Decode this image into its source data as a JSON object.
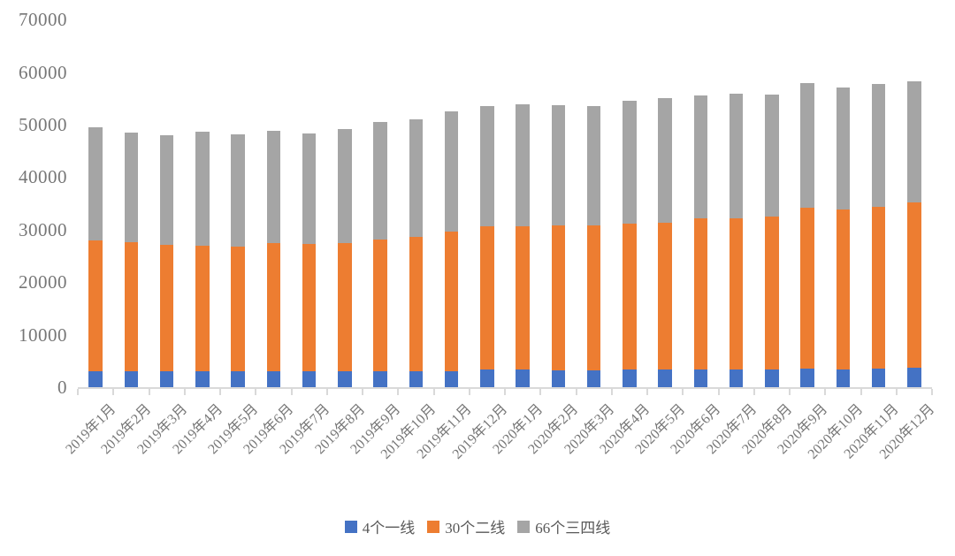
{
  "chart_data": {
    "type": "bar",
    "stacked": true,
    "title": "",
    "xlabel": "",
    "ylabel": "",
    "grid": false,
    "legend_position": "bottom",
    "ylim": [
      0,
      70000
    ],
    "ytick_interval": 10000,
    "yticks": [
      0,
      10000,
      20000,
      30000,
      40000,
      50000,
      60000,
      70000
    ],
    "categories": [
      "2019年1月",
      "2019年2月",
      "2019年3月",
      "2019年4月",
      "2019年5月",
      "2019年6月",
      "2019年7月",
      "2019年8月",
      "2019年9月",
      "2019年10月",
      "2019年11月",
      "2019年12月",
      "2020年1月",
      "2020年2月",
      "2020年3月",
      "2020年4月",
      "2020年5月",
      "2020年6月",
      "2020年7月",
      "2020年8月",
      "2020年9月",
      "2020年10月",
      "2020年11月",
      "2020年12月"
    ],
    "series": [
      {
        "name": "4个一线",
        "color": "#4472C4",
        "values": [
          3100,
          3100,
          3100,
          3100,
          3100,
          3100,
          3000,
          3100,
          3000,
          3100,
          3100,
          3300,
          3300,
          3200,
          3200,
          3300,
          3300,
          3400,
          3400,
          3300,
          3500,
          3400,
          3500,
          3700
        ]
      },
      {
        "name": "30个二线",
        "color": "#ED7D31",
        "values": [
          24800,
          24500,
          24000,
          23900,
          23600,
          24300,
          24200,
          24300,
          25100,
          25600,
          26600,
          27400,
          27300,
          27600,
          27600,
          27900,
          28100,
          28700,
          28700,
          29200,
          30600,
          30500,
          30900,
          31500
        ]
      },
      {
        "name": "66个三四线",
        "color": "#A5A5A5",
        "values": [
          21600,
          20900,
          20900,
          21600,
          21500,
          21400,
          21200,
          21700,
          22400,
          22300,
          22900,
          22900,
          23200,
          22900,
          22700,
          23400,
          23600,
          23400,
          23800,
          23300,
          23800,
          23200,
          23400,
          23100
        ]
      }
    ],
    "totals": [
      49500,
      48500,
      48000,
      48600,
      48200,
      48800,
      48400,
      49100,
      50500,
      51000,
      52600,
      53600,
      53800,
      53700,
      53500,
      54600,
      55000,
      55500,
      55900,
      55800,
      57900,
      57100,
      57800,
      58300
    ],
    "colors": {
      "axis": "#D9D9D9",
      "tick_label_text": "#767676",
      "legend_text": "#595959",
      "background": "#FFFFFF"
    }
  }
}
